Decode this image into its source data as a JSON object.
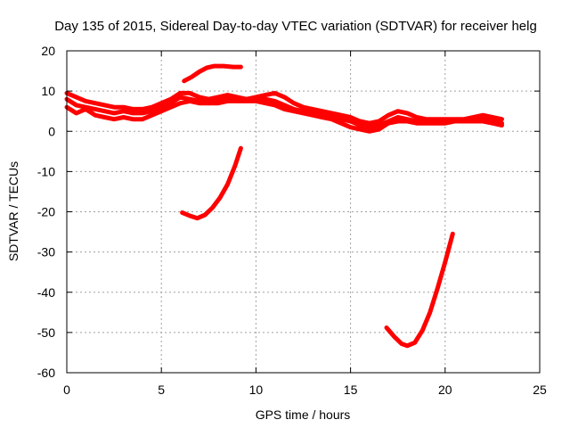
{
  "chart_data": {
    "type": "line",
    "title": "Day 135 of 2015, Sidereal Day-to-day VTEC variation (SDTVAR) for receiver helg",
    "xlabel": "GPS time / hours",
    "ylabel": "SDTVAR / TECUs",
    "xlim": [
      0,
      25
    ],
    "ylim": [
      -60,
      20
    ],
    "xticks": [
      0,
      5,
      10,
      15,
      20,
      25
    ],
    "yticks": [
      -60,
      -50,
      -40,
      -30,
      -20,
      -10,
      0,
      10,
      20
    ],
    "grid": true,
    "color": "#ff0000",
    "series": [
      {
        "name": "band-upper",
        "points": [
          [
            0,
            9.5
          ],
          [
            0.5,
            8.5
          ],
          [
            1,
            7.5
          ],
          [
            1.5,
            7
          ],
          [
            2,
            6.5
          ],
          [
            2.5,
            6
          ],
          [
            3,
            6
          ],
          [
            3.5,
            5.5
          ],
          [
            4,
            5.5
          ],
          [
            4.5,
            6
          ],
          [
            5,
            7
          ],
          [
            5.5,
            8
          ],
          [
            6,
            9.5
          ],
          [
            6.5,
            9.5
          ],
          [
            7,
            8.5
          ],
          [
            7.5,
            8
          ],
          [
            8,
            8.5
          ],
          [
            8.5,
            9
          ],
          [
            9,
            8.5
          ],
          [
            9.5,
            8
          ],
          [
            10,
            8.5
          ],
          [
            10.5,
            9
          ],
          [
            11,
            9.5
          ],
          [
            11.5,
            8.5
          ],
          [
            12,
            7
          ],
          [
            12.5,
            6
          ],
          [
            13,
            5.5
          ],
          [
            13.5,
            5
          ],
          [
            14,
            4.5
          ],
          [
            14.5,
            4
          ],
          [
            15,
            3.5
          ],
          [
            15.5,
            2.5
          ],
          [
            16,
            2
          ],
          [
            16.5,
            2.5
          ],
          [
            17,
            4
          ],
          [
            17.5,
            5
          ],
          [
            18,
            4.5
          ],
          [
            18.5,
            3.5
          ],
          [
            19,
            3
          ],
          [
            19.5,
            3
          ],
          [
            20,
            3
          ],
          [
            20.5,
            3
          ],
          [
            21,
            3
          ],
          [
            21.5,
            3.5
          ],
          [
            22,
            4
          ],
          [
            22.5,
            3.5
          ],
          [
            23,
            3
          ]
        ]
      },
      {
        "name": "band-middle",
        "points": [
          [
            0,
            8
          ],
          [
            0.5,
            6.5
          ],
          [
            1,
            6
          ],
          [
            1.5,
            5.5
          ],
          [
            2,
            5
          ],
          [
            2.5,
            4.5
          ],
          [
            3,
            5
          ],
          [
            3.5,
            4.5
          ],
          [
            4,
            4.5
          ],
          [
            4.5,
            5
          ],
          [
            5,
            6
          ],
          [
            5.5,
            7
          ],
          [
            6,
            8.5
          ],
          [
            6.5,
            8
          ],
          [
            7,
            7.5
          ],
          [
            7.5,
            7
          ],
          [
            8,
            7.5
          ],
          [
            8.5,
            8
          ],
          [
            9,
            8
          ],
          [
            9.5,
            8
          ],
          [
            10,
            8
          ],
          [
            10.5,
            8
          ],
          [
            11,
            7.5
          ],
          [
            11.5,
            6.5
          ],
          [
            12,
            5.5
          ],
          [
            12.5,
            5
          ],
          [
            13,
            4.5
          ],
          [
            13.5,
            4
          ],
          [
            14,
            3.5
          ],
          [
            14.5,
            3
          ],
          [
            15,
            2.5
          ],
          [
            15.5,
            1.5
          ],
          [
            16,
            1
          ],
          [
            16.5,
            1.5
          ],
          [
            17,
            2.5
          ],
          [
            17.5,
            3.5
          ],
          [
            18,
            3
          ],
          [
            18.5,
            2.5
          ],
          [
            19,
            2.5
          ],
          [
            19.5,
            2.5
          ],
          [
            20,
            2.5
          ],
          [
            20.5,
            2.5
          ],
          [
            21,
            2.5
          ],
          [
            21.5,
            3
          ],
          [
            22,
            3
          ],
          [
            22.5,
            2.5
          ],
          [
            23,
            2
          ]
        ]
      },
      {
        "name": "band-lower",
        "points": [
          [
            0,
            6
          ],
          [
            0.5,
            4.5
          ],
          [
            1,
            5.5
          ],
          [
            1.5,
            4
          ],
          [
            2,
            3.5
          ],
          [
            2.5,
            3
          ],
          [
            3,
            3.5
          ],
          [
            3.5,
            3
          ],
          [
            4,
            3
          ],
          [
            4.5,
            4
          ],
          [
            5,
            5
          ],
          [
            5.5,
            6
          ],
          [
            6,
            7
          ],
          [
            6.5,
            7.5
          ],
          [
            7,
            7
          ],
          [
            7.5,
            7
          ],
          [
            8,
            7
          ],
          [
            8.5,
            7.5
          ],
          [
            9,
            7.5
          ],
          [
            9.5,
            7.5
          ],
          [
            10,
            7.5
          ],
          [
            10.5,
            7
          ],
          [
            11,
            6.5
          ],
          [
            11.5,
            5.5
          ],
          [
            12,
            5
          ],
          [
            12.5,
            4.5
          ],
          [
            13,
            4
          ],
          [
            13.5,
            3.5
          ],
          [
            14,
            3
          ],
          [
            14.5,
            2
          ],
          [
            15,
            1
          ],
          [
            15.5,
            0.5
          ],
          [
            16,
            0
          ],
          [
            16.5,
            0.5
          ],
          [
            17,
            2
          ],
          [
            17.5,
            2.5
          ],
          [
            18,
            2.5
          ],
          [
            18.5,
            2
          ],
          [
            19,
            2
          ],
          [
            19.5,
            2
          ],
          [
            20,
            2
          ],
          [
            20.5,
            2.5
          ],
          [
            21,
            2.5
          ],
          [
            21.5,
            2.5
          ],
          [
            22,
            2.5
          ],
          [
            22.5,
            2
          ],
          [
            23,
            1.5
          ]
        ]
      },
      {
        "name": "arc-upper",
        "points": [
          [
            6.2,
            12.5
          ],
          [
            6.6,
            13.5
          ],
          [
            7,
            14.8
          ],
          [
            7.4,
            15.8
          ],
          [
            7.8,
            16.2
          ],
          [
            8.3,
            16.2
          ],
          [
            8.8,
            16
          ],
          [
            9.2,
            16
          ]
        ]
      },
      {
        "name": "arc-middle",
        "points": [
          [
            6.1,
            -20.2
          ],
          [
            6.5,
            -21
          ],
          [
            6.9,
            -21.6
          ],
          [
            7.3,
            -20.8
          ],
          [
            7.7,
            -19
          ],
          [
            8.1,
            -16.5
          ],
          [
            8.5,
            -13.2
          ],
          [
            8.9,
            -8.5
          ],
          [
            9.2,
            -4.2
          ]
        ]
      },
      {
        "name": "arc-lower",
        "points": [
          [
            16.9,
            -48.8
          ],
          [
            17.3,
            -51
          ],
          [
            17.7,
            -52.8
          ],
          [
            18,
            -53.3
          ],
          [
            18.4,
            -52.5
          ],
          [
            18.8,
            -49.5
          ],
          [
            19.2,
            -45
          ],
          [
            19.6,
            -39
          ],
          [
            20,
            -32.5
          ],
          [
            20.4,
            -25.5
          ]
        ]
      }
    ]
  }
}
